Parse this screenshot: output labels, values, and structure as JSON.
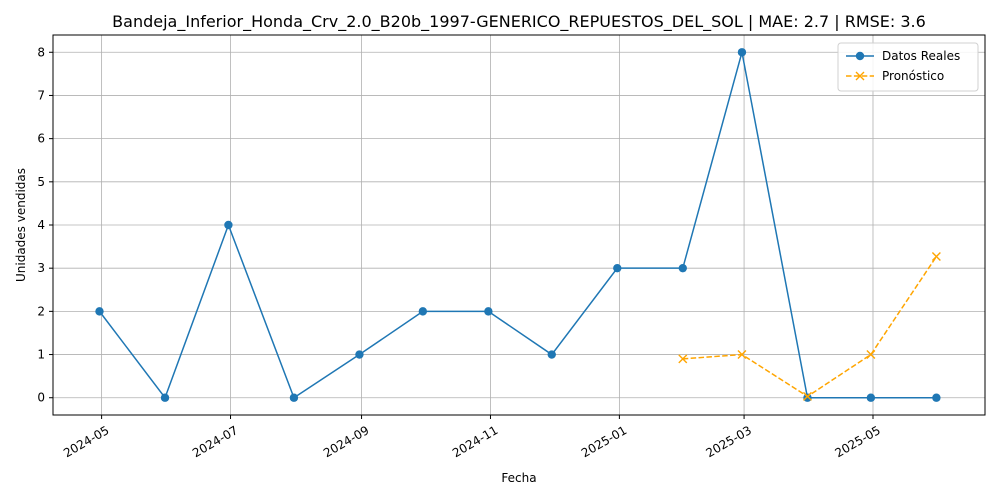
{
  "chart_data": {
    "type": "line",
    "title": "Bandeja_Inferior_Honda_Crv_2.0_B20b_1997-GENERICO_REPUESTOS_DEL_SOL | MAE: 2.7 | RMSE: 3.6",
    "xlabel": "Fecha",
    "ylabel": "Unidades vendidas",
    "x_tick_labels": [
      "2024-05",
      "2024-07",
      "2024-09",
      "2024-11",
      "2025-01",
      "2025-03",
      "2025-05"
    ],
    "y_ticks": [
      0,
      1,
      2,
      3,
      4,
      5,
      6,
      7,
      8
    ],
    "ylim": [
      -0.4,
      8.4
    ],
    "xlim": [
      "2024-04-08",
      "2025-06-23"
    ],
    "grid": true,
    "legend_position": "top-right",
    "series": [
      {
        "name": "Datos Reales",
        "color": "#1f77b4",
        "line_style": "solid",
        "marker": "circle",
        "x": [
          "2024-04-30",
          "2024-05-31",
          "2024-06-30",
          "2024-07-31",
          "2024-08-31",
          "2024-09-30",
          "2024-10-31",
          "2024-11-30",
          "2024-12-31",
          "2025-01-31",
          "2025-02-28",
          "2025-03-31",
          "2025-04-30",
          "2025-05-31"
        ],
        "values": [
          2,
          0,
          4,
          0,
          1,
          2,
          2,
          1,
          3,
          3,
          8,
          0,
          0,
          0
        ]
      },
      {
        "name": "Pronóstico",
        "color": "#ffa500",
        "line_style": "dashed",
        "marker": "x",
        "x": [
          "2025-01-31",
          "2025-02-28",
          "2025-03-31",
          "2025-04-30",
          "2025-05-31"
        ],
        "values": [
          0.9,
          1.0,
          0.03,
          1.0,
          3.27
        ]
      }
    ]
  }
}
